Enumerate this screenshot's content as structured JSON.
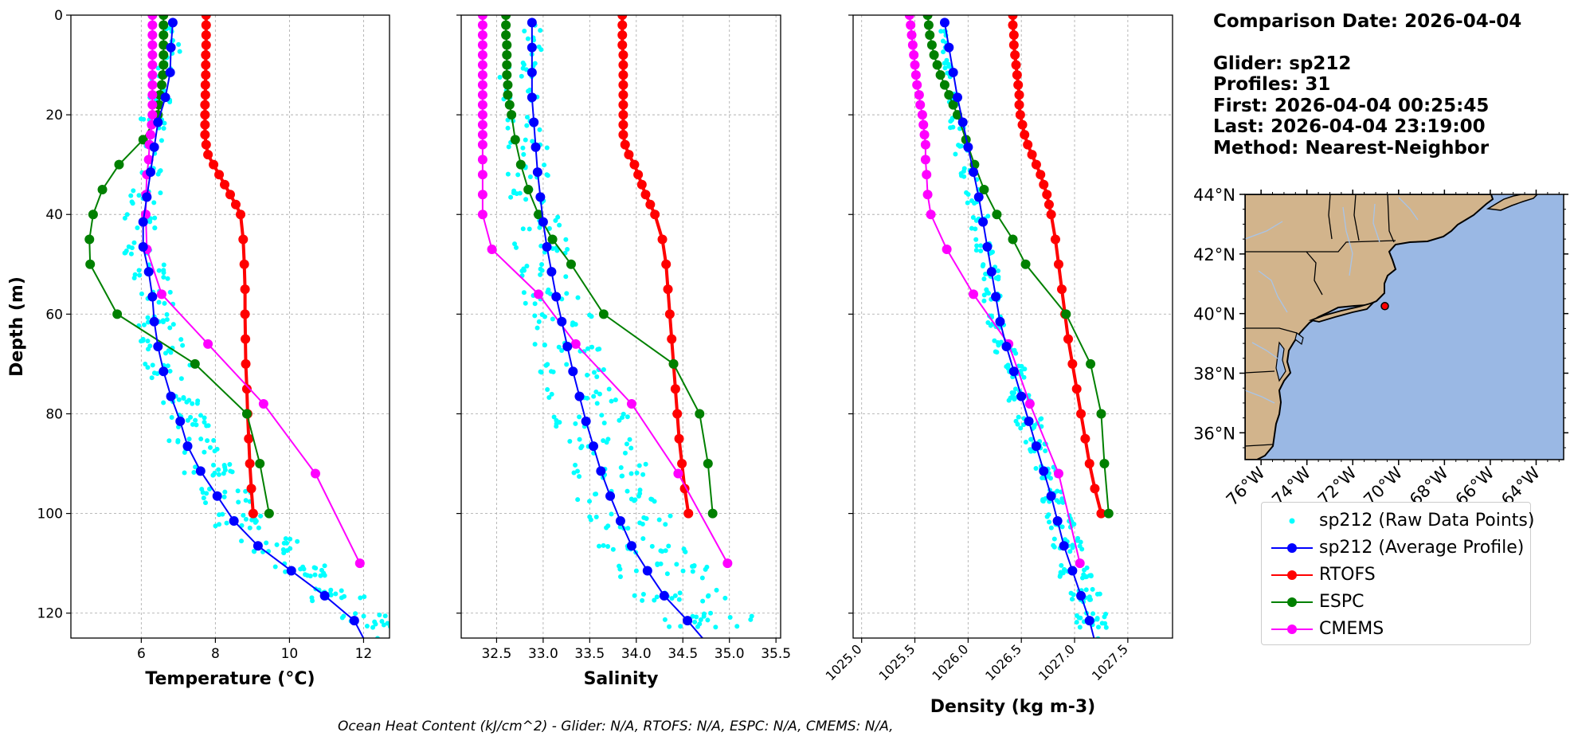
{
  "info": {
    "comparison_date": "Comparison Date: 2026-04-04",
    "glider": "Glider: sp212",
    "profiles": "Profiles: 31",
    "first": "First: 2026-04-04 00:25:45",
    "last": "Last: 2026-04-04 23:19:00",
    "method": "Method: Nearest-Neighbor"
  },
  "footer": "Ocean Heat Content (kJ/cm^2) - Glider: N/A,  RTOFS: N/A,  ESPC: N/A,  CMEMS: N/A,",
  "colors": {
    "raw": "#00ffff",
    "glider": "#0000ff",
    "rtofs": "#ff0000",
    "espc": "#008000",
    "cmems": "#ff00ff",
    "grid": "#b0b0b0",
    "land": "#d2b48c",
    "ocean": "#9ab8e4",
    "river": "#a8c4e8"
  },
  "legend": [
    {
      "key": "raw",
      "label": "sp212 (Raw Data Points)",
      "style": "dots"
    },
    {
      "key": "glider",
      "label": "sp212 (Average Profile)",
      "style": "line-marker"
    },
    {
      "key": "rtofs",
      "label": "RTOFS",
      "style": "line-marker"
    },
    {
      "key": "espc",
      "label": "ESPC",
      "style": "line-marker"
    },
    {
      "key": "cmems",
      "label": "CMEMS",
      "style": "line-marker"
    }
  ],
  "chart_data": [
    {
      "type": "line",
      "xlabel": "Temperature (°C)",
      "ylabel": "Depth (m)",
      "xlim": [
        4.1,
        12.7
      ],
      "ylim": [
        125,
        0
      ],
      "xticks": [
        "6",
        "8",
        "10",
        "12"
      ],
      "yticks": [
        "0",
        "20",
        "40",
        "60",
        "80",
        "100",
        "120"
      ],
      "grid": true,
      "series": [
        {
          "key": "rtofs",
          "name": "RTOFS",
          "depth": [
            0,
            2,
            4,
            6,
            8,
            10,
            12,
            14,
            16,
            18,
            20,
            22,
            24,
            26,
            28,
            30,
            32,
            34,
            36,
            38,
            40,
            45,
            50,
            55,
            60,
            65,
            70,
            75,
            80,
            85,
            90,
            95,
            100
          ],
          "values": [
            7.75,
            7.75,
            7.75,
            7.75,
            7.74,
            7.74,
            7.74,
            7.73,
            7.73,
            7.72,
            7.72,
            7.72,
            7.72,
            7.75,
            7.8,
            7.95,
            8.1,
            8.25,
            8.4,
            8.55,
            8.68,
            8.75,
            8.78,
            8.8,
            8.8,
            8.81,
            8.82,
            8.85,
            8.87,
            8.9,
            8.93,
            8.97,
            9.02
          ]
        },
        {
          "key": "espc",
          "name": "ESPC",
          "depth": [
            0,
            2,
            4,
            6,
            8,
            10,
            12,
            14,
            16,
            18,
            20,
            25,
            30,
            35,
            40,
            45,
            50,
            60,
            70,
            80,
            90,
            100
          ],
          "values": [
            6.6,
            6.6,
            6.6,
            6.6,
            6.6,
            6.6,
            6.58,
            6.55,
            6.5,
            6.48,
            6.45,
            6.05,
            5.4,
            4.95,
            4.7,
            4.6,
            4.62,
            5.35,
            7.45,
            8.85,
            9.2,
            9.45
          ]
        },
        {
          "key": "cmems",
          "name": "CMEMS",
          "depth": [
            0,
            2,
            4,
            6,
            8,
            10,
            12,
            14,
            16,
            18,
            20,
            22,
            24,
            26,
            29,
            32,
            36,
            40,
            47,
            56,
            66,
            78,
            92,
            110
          ],
          "values": [
            6.3,
            6.3,
            6.3,
            6.3,
            6.3,
            6.3,
            6.3,
            6.3,
            6.3,
            6.3,
            6.3,
            6.28,
            6.25,
            6.22,
            6.2,
            6.15,
            6.13,
            6.12,
            6.15,
            6.55,
            7.8,
            9.3,
            10.7,
            11.9
          ]
        },
        {
          "key": "glider",
          "name": "sp212 (Average Profile)",
          "depth": [
            1.5,
            6.5,
            11.5,
            16.5,
            21.5,
            26.5,
            31.5,
            36.5,
            41.5,
            46.5,
            51.5,
            56.5,
            61.5,
            66.5,
            71.5,
            76.5,
            81.5,
            86.5,
            91.5,
            96.5,
            101.5,
            106.5,
            111.5,
            116.5,
            121.5,
            126.5
          ],
          "values": [
            6.85,
            6.8,
            6.78,
            6.65,
            6.45,
            6.35,
            6.25,
            6.15,
            6.05,
            6.05,
            6.2,
            6.3,
            6.35,
            6.45,
            6.6,
            6.8,
            7.05,
            7.25,
            7.6,
            8.05,
            8.5,
            9.15,
            10.05,
            10.95,
            11.75,
            12.1
          ]
        }
      ]
    },
    {
      "type": "line",
      "xlabel": "Salinity",
      "xlim": [
        32.12,
        35.55
      ],
      "ylim": [
        125,
        0
      ],
      "xticks": [
        "32.5",
        "33.0",
        "33.5",
        "34.0",
        "34.5",
        "35.0",
        "35.5"
      ],
      "grid": true,
      "series": [
        {
          "key": "rtofs",
          "name": "RTOFS",
          "depth": [
            0,
            2,
            4,
            6,
            8,
            10,
            12,
            14,
            16,
            18,
            20,
            22,
            24,
            26,
            28,
            30,
            32,
            34,
            36,
            38,
            40,
            45,
            50,
            55,
            60,
            65,
            70,
            75,
            80,
            85,
            90,
            95,
            100
          ],
          "values": [
            33.85,
            33.85,
            33.85,
            33.85,
            33.86,
            33.86,
            33.86,
            33.86,
            33.86,
            33.86,
            33.86,
            33.86,
            33.86,
            33.88,
            33.92,
            33.98,
            34.02,
            34.06,
            34.1,
            34.15,
            34.2,
            34.28,
            34.32,
            34.34,
            34.36,
            34.38,
            34.4,
            34.42,
            34.44,
            34.46,
            34.49,
            34.52,
            34.56
          ]
        },
        {
          "key": "espc",
          "name": "ESPC",
          "depth": [
            0,
            2,
            4,
            6,
            8,
            10,
            12,
            14,
            16,
            18,
            20,
            25,
            30,
            35,
            40,
            45,
            50,
            60,
            70,
            80,
            90,
            100
          ],
          "values": [
            32.6,
            32.6,
            32.6,
            32.61,
            32.61,
            32.61,
            32.61,
            32.62,
            32.62,
            32.64,
            32.66,
            32.7,
            32.76,
            32.84,
            32.95,
            33.1,
            33.3,
            33.65,
            34.4,
            34.68,
            34.77,
            34.82
          ]
        },
        {
          "key": "cmems",
          "name": "CMEMS",
          "depth": [
            0,
            2,
            4,
            6,
            8,
            10,
            12,
            14,
            16,
            18,
            20,
            22,
            24,
            26,
            29,
            32,
            36,
            40,
            47,
            56,
            66,
            78,
            92,
            110
          ],
          "values": [
            32.35,
            32.35,
            32.35,
            32.35,
            32.35,
            32.35,
            32.35,
            32.35,
            32.35,
            32.35,
            32.35,
            32.35,
            32.35,
            32.35,
            32.35,
            32.35,
            32.35,
            32.35,
            32.45,
            32.95,
            33.35,
            33.95,
            34.45,
            34.98
          ]
        },
        {
          "key": "glider",
          "name": "sp212 (Average Profile)",
          "depth": [
            1.5,
            6.5,
            11.5,
            16.5,
            21.5,
            26.5,
            31.5,
            36.5,
            41.5,
            46.5,
            51.5,
            56.5,
            61.5,
            66.5,
            71.5,
            76.5,
            81.5,
            86.5,
            91.5,
            96.5,
            101.5,
            106.5,
            111.5,
            116.5,
            121.5,
            126.5
          ],
          "values": [
            32.88,
            32.88,
            32.88,
            32.88,
            32.9,
            32.92,
            32.94,
            32.97,
            33.0,
            33.04,
            33.09,
            33.14,
            33.2,
            33.26,
            33.32,
            33.39,
            33.46,
            33.54,
            33.62,
            33.72,
            33.83,
            33.95,
            34.12,
            34.3,
            34.55,
            34.78
          ]
        }
      ],
      "raw_offset_range": [
        -0.35,
        0.45
      ]
    },
    {
      "type": "line",
      "xlabel": "Density (kg m-3)",
      "xlim": [
        1024.92,
        1027.92
      ],
      "ylim": [
        125,
        0
      ],
      "xticks": [
        "1025.0",
        "1025.5",
        "1026.0",
        "1026.5",
        "1027.0",
        "1027.5"
      ],
      "grid": true,
      "series": [
        {
          "key": "rtofs",
          "name": "RTOFS",
          "depth": [
            0,
            2,
            4,
            6,
            8,
            10,
            12,
            14,
            16,
            18,
            20,
            22,
            24,
            26,
            28,
            30,
            32,
            34,
            36,
            38,
            40,
            45,
            50,
            55,
            60,
            65,
            70,
            75,
            80,
            85,
            90,
            95,
            100
          ],
          "values": [
            1026.42,
            1026.42,
            1026.43,
            1026.43,
            1026.44,
            1026.45,
            1026.46,
            1026.47,
            1026.48,
            1026.48,
            1026.49,
            1026.51,
            1026.53,
            1026.56,
            1026.6,
            1026.64,
            1026.68,
            1026.71,
            1026.74,
            1026.76,
            1026.78,
            1026.82,
            1026.85,
            1026.88,
            1026.91,
            1026.94,
            1026.98,
            1027.02,
            1027.06,
            1027.1,
            1027.14,
            1027.19,
            1027.25
          ]
        },
        {
          "key": "espc",
          "name": "ESPC",
          "depth": [
            0,
            2,
            4,
            6,
            8,
            10,
            12,
            14,
            16,
            18,
            20,
            25,
            30,
            35,
            40,
            45,
            50,
            60,
            70,
            80,
            90,
            100
          ],
          "values": [
            1025.62,
            1025.63,
            1025.64,
            1025.66,
            1025.68,
            1025.71,
            1025.74,
            1025.78,
            1025.82,
            1025.86,
            1025.9,
            1025.98,
            1026.06,
            1026.15,
            1026.27,
            1026.42,
            1026.54,
            1026.92,
            1027.15,
            1027.25,
            1027.28,
            1027.32
          ]
        },
        {
          "key": "cmems",
          "name": "CMEMS",
          "depth": [
            0,
            2,
            4,
            6,
            8,
            10,
            12,
            14,
            16,
            18,
            20,
            22,
            24,
            26,
            29,
            32,
            36,
            40,
            47,
            56,
            66,
            78,
            92,
            110
          ],
          "values": [
            1025.45,
            1025.46,
            1025.47,
            1025.48,
            1025.49,
            1025.5,
            1025.51,
            1025.52,
            1025.54,
            1025.55,
            1025.57,
            1025.58,
            1025.59,
            1025.6,
            1025.6,
            1025.61,
            1025.62,
            1025.65,
            1025.8,
            1026.05,
            1026.38,
            1026.58,
            1026.85,
            1027.05
          ]
        },
        {
          "key": "glider",
          "name": "sp212 (Average Profile)",
          "depth": [
            1.5,
            6.5,
            11.5,
            16.5,
            21.5,
            26.5,
            31.5,
            36.5,
            41.5,
            46.5,
            51.5,
            56.5,
            61.5,
            66.5,
            71.5,
            76.5,
            81.5,
            86.5,
            91.5,
            96.5,
            101.5,
            106.5,
            111.5,
            116.5,
            121.5,
            126.5
          ],
          "values": [
            1025.78,
            1025.82,
            1025.86,
            1025.9,
            1025.95,
            1026.0,
            1026.05,
            1026.1,
            1026.14,
            1026.18,
            1026.22,
            1026.26,
            1026.3,
            1026.36,
            1026.43,
            1026.5,
            1026.57,
            1026.64,
            1026.71,
            1026.78,
            1026.84,
            1026.9,
            1026.98,
            1027.06,
            1027.14,
            1027.2
          ]
        }
      ],
      "raw_offset_range": [
        -0.12,
        0.12
      ]
    },
    {
      "type": "map",
      "lon_range": [
        -76.7,
        -62.8
      ],
      "lat_range": [
        35.1,
        44.0
      ],
      "xticks": [
        "76°W",
        "74°W",
        "72°W",
        "70°W",
        "68°W",
        "66°W",
        "64°W"
      ],
      "yticks": [
        "36°N",
        "38°N",
        "40°N",
        "42°N",
        "44°N"
      ],
      "glider_position": {
        "lon": -70.6,
        "lat": 40.25
      }
    }
  ]
}
